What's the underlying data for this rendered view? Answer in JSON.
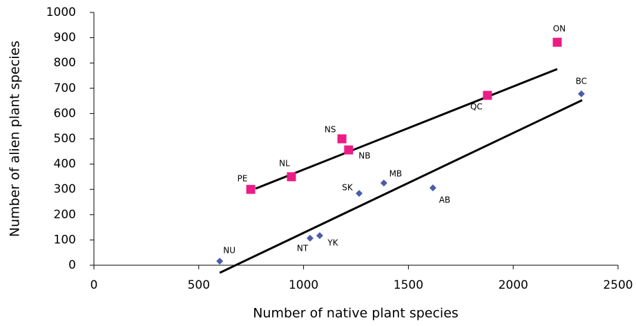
{
  "chart_data": {
    "type": "scatter",
    "xlabel": "Number of native plant species",
    "ylabel": "Number of alien plant species",
    "xlim": [
      0,
      2500
    ],
    "xticks": [
      0,
      500,
      1000,
      1500,
      2000,
      2500
    ],
    "ylim": [
      0,
      1000
    ],
    "yticks": [
      0,
      100,
      200,
      300,
      400,
      500,
      600,
      700,
      800,
      900,
      1000
    ],
    "grid": false,
    "series": [
      {
        "color": "#ec1c86",
        "marker": "square",
        "labels": [
          "PE",
          "NL",
          "NS",
          "NB",
          "QC",
          "ON"
        ],
        "x": [
          748,
          942,
          1183,
          1215,
          1877,
          2210
        ],
        "values": [
          300,
          350,
          500,
          456,
          672,
          882
        ]
      },
      {
        "color": "#4a5cac",
        "marker": "diamond",
        "labels": [
          "NU",
          "NT",
          "YK",
          "SK",
          "MB",
          "AB",
          "BC"
        ],
        "x": [
          600,
          1031,
          1077,
          1265,
          1383,
          1617,
          2325
        ],
        "values": [
          16,
          107,
          117,
          284,
          325,
          306,
          678
        ]
      }
    ],
    "trendlines": [
      {
        "color": "#000000",
        "x": [
          771,
          2210
        ],
        "values": [
          303,
          776
        ]
      },
      {
        "color": "#000000",
        "x": [
          600,
          2329
        ],
        "values": [
          -30,
          653
        ]
      }
    ]
  }
}
